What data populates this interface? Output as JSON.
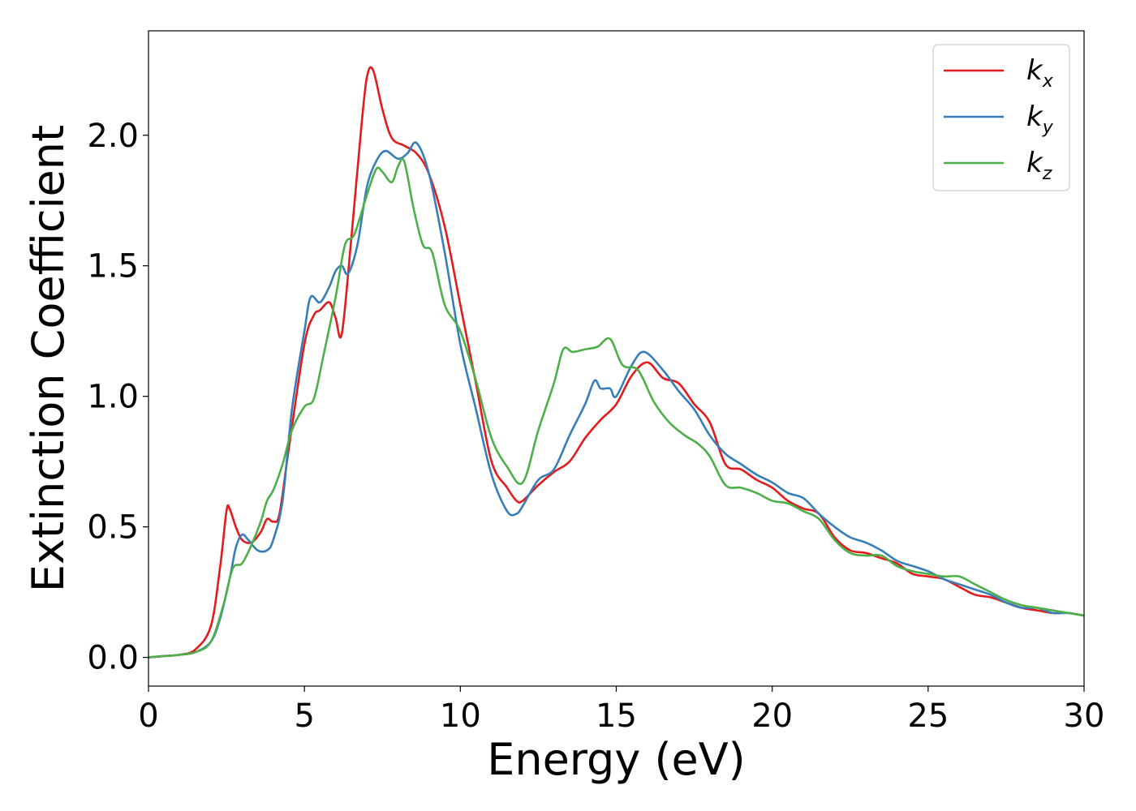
{
  "chart_data": {
    "type": "line",
    "xlabel": "Energy (eV)",
    "ylabel": "Extinction Coefficient",
    "xlim": [
      0,
      30
    ],
    "ylim": [
      -0.11,
      2.4
    ],
    "xticks": [
      0,
      5,
      10,
      15,
      20,
      25,
      30
    ],
    "yticks": [
      0.0,
      0.5,
      1.0,
      1.5,
      2.0
    ],
    "xtick_labels": [
      "0",
      "5",
      "10",
      "15",
      "20",
      "25",
      "30"
    ],
    "ytick_labels": [
      "0.0",
      "0.5",
      "1.0",
      "1.5",
      "2.0"
    ],
    "grid": false,
    "legend_position": "top-right",
    "colors": {
      "kx": "#e41a1c",
      "ky": "#377eb8",
      "kz": "#4daf4a"
    },
    "series": [
      {
        "name": "k",
        "subscript": "x",
        "color": "#e41a1c",
        "points": [
          [
            0,
            0.0
          ],
          [
            0.5,
            0.005
          ],
          [
            1.0,
            0.01
          ],
          [
            1.5,
            0.03
          ],
          [
            2.0,
            0.12
          ],
          [
            2.3,
            0.35
          ],
          [
            2.5,
            0.56
          ],
          [
            2.6,
            0.57
          ],
          [
            2.8,
            0.5
          ],
          [
            3.0,
            0.45
          ],
          [
            3.3,
            0.44
          ],
          [
            3.6,
            0.48
          ],
          [
            3.8,
            0.53
          ],
          [
            4.0,
            0.52
          ],
          [
            4.2,
            0.55
          ],
          [
            4.5,
            0.8
          ],
          [
            5.0,
            1.2
          ],
          [
            5.3,
            1.31
          ],
          [
            5.5,
            1.33
          ],
          [
            5.8,
            1.36
          ],
          [
            6.0,
            1.3
          ],
          [
            6.2,
            1.24
          ],
          [
            6.5,
            1.6
          ],
          [
            6.8,
            2.0
          ],
          [
            7.0,
            2.22
          ],
          [
            7.2,
            2.25
          ],
          [
            7.5,
            2.1
          ],
          [
            7.8,
            1.99
          ],
          [
            8.2,
            1.96
          ],
          [
            8.6,
            1.93
          ],
          [
            9.0,
            1.85
          ],
          [
            9.5,
            1.65
          ],
          [
            10.0,
            1.35
          ],
          [
            10.5,
            1.05
          ],
          [
            11.0,
            0.75
          ],
          [
            11.5,
            0.65
          ],
          [
            11.8,
            0.6
          ],
          [
            12.0,
            0.6
          ],
          [
            12.5,
            0.66
          ],
          [
            13.0,
            0.71
          ],
          [
            13.5,
            0.75
          ],
          [
            14.0,
            0.84
          ],
          [
            14.5,
            0.91
          ],
          [
            15.0,
            0.97
          ],
          [
            15.5,
            1.08
          ],
          [
            16.0,
            1.13
          ],
          [
            16.5,
            1.07
          ],
          [
            17.0,
            1.05
          ],
          [
            17.5,
            0.97
          ],
          [
            18.0,
            0.9
          ],
          [
            18.5,
            0.74
          ],
          [
            19.0,
            0.72
          ],
          [
            19.5,
            0.68
          ],
          [
            20.0,
            0.65
          ],
          [
            20.5,
            0.6
          ],
          [
            21.0,
            0.57
          ],
          [
            21.5,
            0.55
          ],
          [
            22.0,
            0.46
          ],
          [
            22.5,
            0.41
          ],
          [
            23.0,
            0.4
          ],
          [
            23.5,
            0.38
          ],
          [
            24.0,
            0.36
          ],
          [
            24.5,
            0.32
          ],
          [
            25.0,
            0.31
          ],
          [
            25.5,
            0.3
          ],
          [
            26.0,
            0.27
          ],
          [
            26.5,
            0.24
          ],
          [
            27.0,
            0.23
          ],
          [
            27.5,
            0.21
          ],
          [
            28.0,
            0.19
          ],
          [
            28.5,
            0.18
          ],
          [
            29.0,
            0.17
          ],
          [
            29.5,
            0.17
          ],
          [
            30.0,
            0.16
          ]
        ]
      },
      {
        "name": "k",
        "subscript": "y",
        "color": "#377eb8",
        "points": [
          [
            0,
            0.0
          ],
          [
            0.5,
            0.005
          ],
          [
            1.0,
            0.01
          ],
          [
            1.5,
            0.02
          ],
          [
            2.0,
            0.06
          ],
          [
            2.3,
            0.15
          ],
          [
            2.6,
            0.3
          ],
          [
            2.8,
            0.42
          ],
          [
            3.0,
            0.47
          ],
          [
            3.2,
            0.45
          ],
          [
            3.5,
            0.41
          ],
          [
            3.8,
            0.41
          ],
          [
            4.0,
            0.45
          ],
          [
            4.3,
            0.6
          ],
          [
            4.6,
            0.95
          ],
          [
            5.0,
            1.25
          ],
          [
            5.2,
            1.38
          ],
          [
            5.5,
            1.36
          ],
          [
            5.8,
            1.42
          ],
          [
            6.0,
            1.48
          ],
          [
            6.2,
            1.5
          ],
          [
            6.4,
            1.47
          ],
          [
            6.7,
            1.58
          ],
          [
            7.0,
            1.8
          ],
          [
            7.3,
            1.9
          ],
          [
            7.6,
            1.94
          ],
          [
            8.0,
            1.91
          ],
          [
            8.3,
            1.93
          ],
          [
            8.6,
            1.97
          ],
          [
            9.0,
            1.85
          ],
          [
            9.5,
            1.55
          ],
          [
            10.0,
            1.2
          ],
          [
            10.5,
            0.95
          ],
          [
            11.0,
            0.7
          ],
          [
            11.5,
            0.56
          ],
          [
            11.8,
            0.55
          ],
          [
            12.0,
            0.58
          ],
          [
            12.5,
            0.68
          ],
          [
            13.0,
            0.72
          ],
          [
            13.5,
            0.85
          ],
          [
            14.0,
            0.97
          ],
          [
            14.3,
            1.06
          ],
          [
            14.5,
            1.03
          ],
          [
            14.8,
            1.03
          ],
          [
            15.0,
            1.0
          ],
          [
            15.5,
            1.12
          ],
          [
            15.9,
            1.17
          ],
          [
            16.5,
            1.1
          ],
          [
            17.0,
            1.02
          ],
          [
            17.5,
            0.95
          ],
          [
            18.0,
            0.85
          ],
          [
            18.5,
            0.78
          ],
          [
            19.0,
            0.74
          ],
          [
            19.5,
            0.7
          ],
          [
            20.0,
            0.67
          ],
          [
            20.5,
            0.63
          ],
          [
            21.0,
            0.61
          ],
          [
            21.5,
            0.55
          ],
          [
            22.0,
            0.5
          ],
          [
            22.5,
            0.46
          ],
          [
            23.0,
            0.44
          ],
          [
            23.5,
            0.41
          ],
          [
            24.0,
            0.37
          ],
          [
            24.5,
            0.35
          ],
          [
            25.0,
            0.33
          ],
          [
            25.5,
            0.3
          ],
          [
            26.0,
            0.28
          ],
          [
            26.5,
            0.26
          ],
          [
            27.0,
            0.24
          ],
          [
            27.5,
            0.21
          ],
          [
            28.0,
            0.19
          ],
          [
            28.5,
            0.19
          ],
          [
            29.0,
            0.17
          ],
          [
            29.5,
            0.17
          ],
          [
            30.0,
            0.16
          ]
        ]
      },
      {
        "name": "k",
        "subscript": "z",
        "color": "#4daf4a",
        "points": [
          [
            0,
            0.0
          ],
          [
            0.5,
            0.005
          ],
          [
            1.0,
            0.01
          ],
          [
            1.5,
            0.02
          ],
          [
            2.0,
            0.06
          ],
          [
            2.4,
            0.2
          ],
          [
            2.7,
            0.34
          ],
          [
            3.0,
            0.36
          ],
          [
            3.3,
            0.43
          ],
          [
            3.6,
            0.52
          ],
          [
            3.8,
            0.6
          ],
          [
            4.0,
            0.64
          ],
          [
            4.3,
            0.74
          ],
          [
            4.6,
            0.87
          ],
          [
            5.0,
            0.96
          ],
          [
            5.3,
            0.99
          ],
          [
            5.6,
            1.15
          ],
          [
            6.0,
            1.38
          ],
          [
            6.3,
            1.58
          ],
          [
            6.6,
            1.62
          ],
          [
            7.0,
            1.77
          ],
          [
            7.3,
            1.87
          ],
          [
            7.5,
            1.86
          ],
          [
            7.8,
            1.82
          ],
          [
            8.0,
            1.88
          ],
          [
            8.2,
            1.9
          ],
          [
            8.5,
            1.72
          ],
          [
            8.8,
            1.58
          ],
          [
            9.1,
            1.55
          ],
          [
            9.5,
            1.35
          ],
          [
            10.0,
            1.25
          ],
          [
            10.5,
            1.06
          ],
          [
            11.0,
            0.84
          ],
          [
            11.5,
            0.73
          ],
          [
            12.0,
            0.67
          ],
          [
            12.5,
            0.87
          ],
          [
            13.0,
            1.05
          ],
          [
            13.3,
            1.18
          ],
          [
            13.6,
            1.17
          ],
          [
            14.0,
            1.18
          ],
          [
            14.4,
            1.19
          ],
          [
            14.8,
            1.22
          ],
          [
            15.2,
            1.12
          ],
          [
            15.7,
            1.1
          ],
          [
            16.2,
            0.98
          ],
          [
            16.7,
            0.9
          ],
          [
            17.2,
            0.85
          ],
          [
            17.6,
            0.82
          ],
          [
            18.0,
            0.77
          ],
          [
            18.5,
            0.66
          ],
          [
            19.0,
            0.65
          ],
          [
            19.5,
            0.63
          ],
          [
            20.0,
            0.6
          ],
          [
            20.5,
            0.59
          ],
          [
            21.0,
            0.56
          ],
          [
            21.5,
            0.53
          ],
          [
            22.0,
            0.45
          ],
          [
            22.5,
            0.4
          ],
          [
            23.0,
            0.39
          ],
          [
            23.5,
            0.39
          ],
          [
            24.0,
            0.35
          ],
          [
            24.5,
            0.33
          ],
          [
            25.0,
            0.32
          ],
          [
            25.5,
            0.31
          ],
          [
            26.0,
            0.31
          ],
          [
            26.5,
            0.28
          ],
          [
            27.0,
            0.25
          ],
          [
            27.5,
            0.22
          ],
          [
            28.0,
            0.2
          ],
          [
            28.5,
            0.19
          ],
          [
            29.0,
            0.18
          ],
          [
            29.5,
            0.17
          ],
          [
            30.0,
            0.16
          ]
        ]
      }
    ]
  }
}
